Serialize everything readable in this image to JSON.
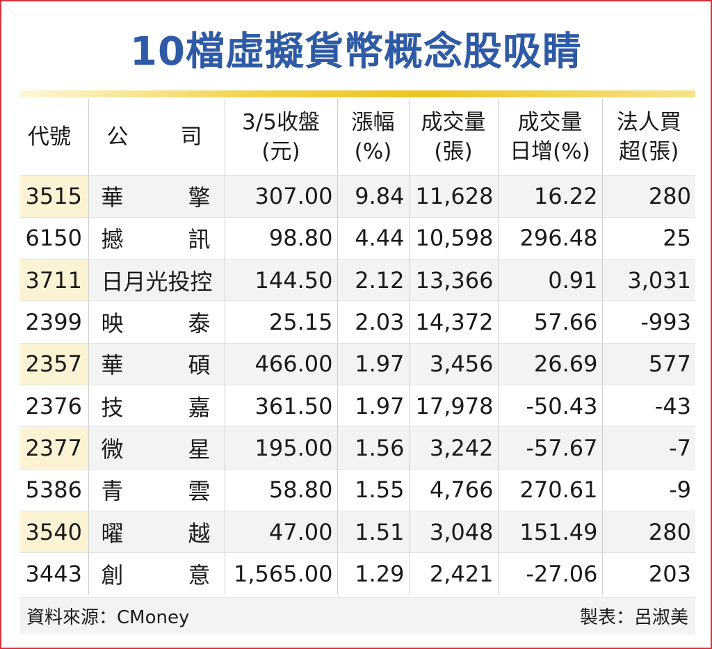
{
  "title": "10檔虛擬貨幣概念股吸睛",
  "headers": {
    "code": "代號",
    "company_a": "公",
    "company_b": "司",
    "close_l1": "3/5收盤",
    "close_l2": "(元)",
    "change_l1": "漲幅",
    "change_l2": "(%)",
    "volume_l1": "成交量",
    "volume_l2": "(張)",
    "vol_inc_l1": "成交量",
    "vol_inc_l2": "日增(%)",
    "inst_l1": "法人買",
    "inst_l2": "超(張)"
  },
  "rows": [
    {
      "code": "3515",
      "company": "華擎",
      "close": "307.00",
      "change": "9.84",
      "volume": "11,628",
      "vol_inc": "16.22",
      "inst": "280"
    },
    {
      "code": "6150",
      "company": "撼訊",
      "close": "98.80",
      "change": "4.44",
      "volume": "10,598",
      "vol_inc": "296.48",
      "inst": "25"
    },
    {
      "code": "3711",
      "company": "日月光投控",
      "close": "144.50",
      "change": "2.12",
      "volume": "13,366",
      "vol_inc": "0.91",
      "inst": "3,031"
    },
    {
      "code": "2399",
      "company": "映泰",
      "close": "25.15",
      "change": "2.03",
      "volume": "14,372",
      "vol_inc": "57.66",
      "inst": "-993"
    },
    {
      "code": "2357",
      "company": "華碩",
      "close": "466.00",
      "change": "1.97",
      "volume": "3,456",
      "vol_inc": "26.69",
      "inst": "577"
    },
    {
      "code": "2376",
      "company": "技嘉",
      "close": "361.50",
      "change": "1.97",
      "volume": "17,978",
      "vol_inc": "-50.43",
      "inst": "-43"
    },
    {
      "code": "2377",
      "company": "微星",
      "close": "195.00",
      "change": "1.56",
      "volume": "3,242",
      "vol_inc": "-57.67",
      "inst": "-7"
    },
    {
      "code": "5386",
      "company": "青雲",
      "close": "58.80",
      "change": "1.55",
      "volume": "4,766",
      "vol_inc": "270.61",
      "inst": "-9"
    },
    {
      "code": "3540",
      "company": "曜越",
      "close": "47.00",
      "change": "1.51",
      "volume": "3,048",
      "vol_inc": "151.49",
      "inst": "280"
    },
    {
      "code": "3443",
      "company": "創意",
      "close": "1,565.00",
      "change": "1.29",
      "volume": "2,421",
      "vol_inc": "-27.06",
      "inst": "203"
    }
  ],
  "footer": {
    "source": "資料來源：CMoney",
    "credit": "製表：呂淑美"
  }
}
